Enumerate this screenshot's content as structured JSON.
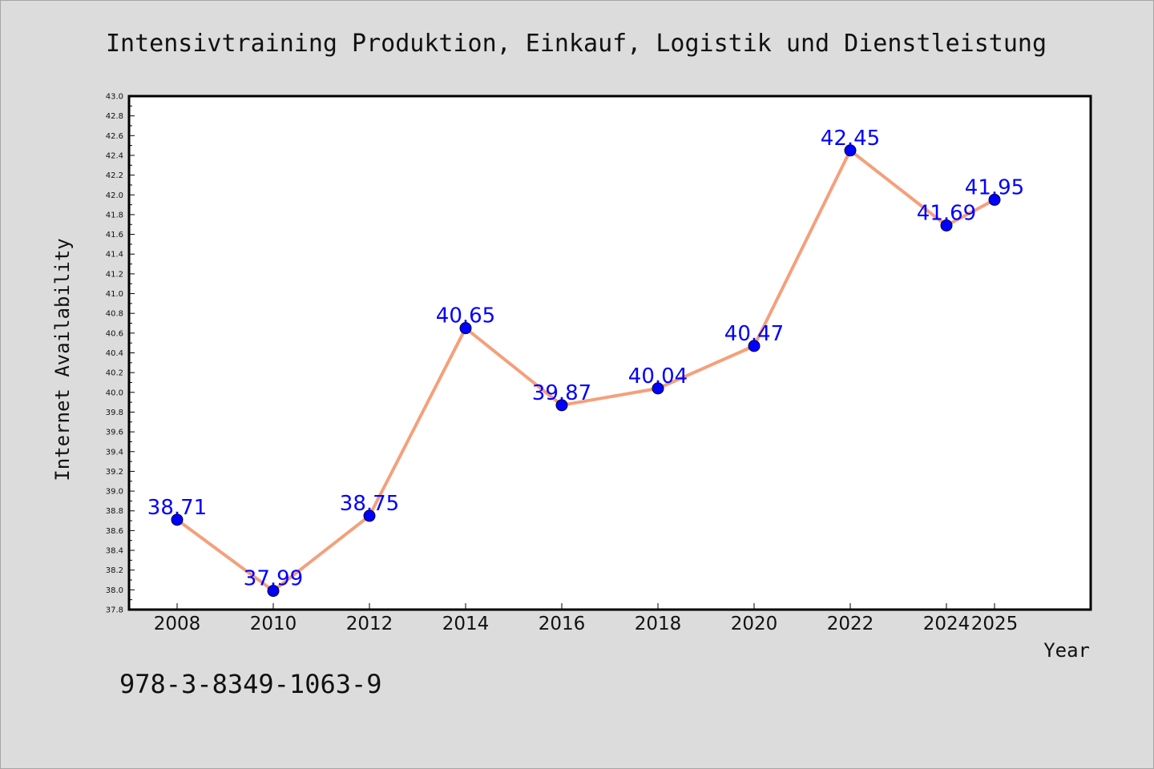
{
  "chart_data": {
    "type": "line",
    "title": "Intensivtraining Produktion, Einkauf, Logistik und Dienstleistung",
    "xlabel": "Year",
    "ylabel": "Internet Availability",
    "x": [
      "2008",
      "2010",
      "2012",
      "2014",
      "2016",
      "2018",
      "2020",
      "2022",
      "2024",
      "2025"
    ],
    "series": [
      {
        "values": [
          38.71,
          37.99,
          38.75,
          40.65,
          39.87,
          40.04,
          40.47,
          42.45,
          41.69,
          41.95
        ],
        "labels": [
          "38.71",
          "37.99",
          "38.75",
          "40.65",
          "39.87",
          "40.04",
          "40.47",
          "42.45",
          "41.69",
          "41.95"
        ],
        "line_color": "#f4a07c",
        "marker_color": "#0000ff"
      }
    ],
    "ylim": [
      37.8,
      43.0
    ],
    "yticks": [
      "37.8",
      "38.0",
      "38.2",
      "38.4",
      "38.6",
      "38.8",
      "39.0",
      "39.2",
      "39.4",
      "39.6",
      "39.8",
      "40.0",
      "40.2",
      "40.4",
      "40.6",
      "40.8",
      "41.0",
      "41.2",
      "41.4",
      "41.6",
      "41.8",
      "42.0",
      "42.2",
      "42.4",
      "42.6",
      "42.8",
      "43.0"
    ],
    "grid": false,
    "legend": "none"
  },
  "footer": {
    "code": "978-3-8349-1063-9"
  }
}
